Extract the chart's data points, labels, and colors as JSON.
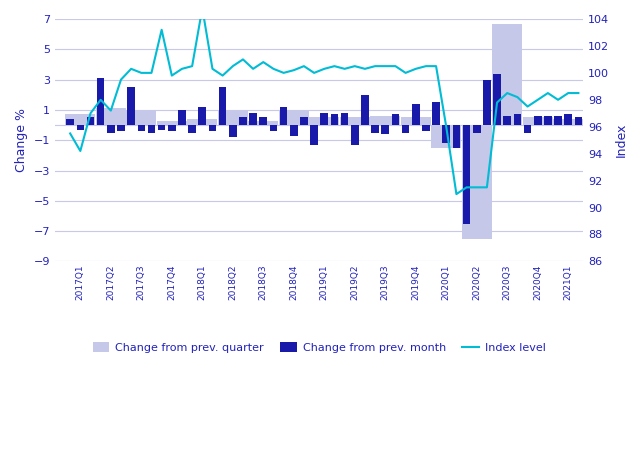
{
  "quarters": [
    "2017Q1",
    "2017Q2",
    "2017Q3",
    "2017Q4",
    "2018Q1",
    "2018Q2",
    "2018Q3",
    "2018Q4",
    "2019Q1",
    "2019Q2",
    "2019Q3",
    "2019Q4",
    "2020Q1",
    "2020Q2",
    "2020Q3",
    "2020Q4",
    "2021Q1"
  ],
  "quarter_change": [
    0.7,
    1.1,
    1.0,
    0.3,
    0.4,
    0.9,
    0.3,
    1.0,
    0.5,
    0.5,
    0.6,
    0.5,
    -1.5,
    -7.5,
    6.7,
    0.5,
    0.4
  ],
  "month_change": [
    0.4,
    -0.3,
    0.5,
    3.1,
    -0.5,
    -0.4,
    2.5,
    -0.4,
    -0.5,
    -0.3,
    -0.4,
    1.0,
    -0.5,
    1.2,
    -0.4,
    2.5,
    -0.8,
    0.5,
    0.8,
    0.5,
    -0.4,
    1.2,
    -0.7,
    0.5,
    -1.3,
    0.8,
    0.7,
    0.8,
    -1.3,
    2.0,
    -0.5,
    -0.6,
    0.7,
    -0.5,
    1.4,
    -0.4,
    1.5,
    -1.2,
    -1.5,
    -6.5,
    -0.5,
    3.0,
    3.4,
    0.6,
    0.7,
    -0.5,
    0.6,
    0.6,
    0.6,
    0.7,
    0.5
  ],
  "index_values": [
    95.5,
    94.2,
    97.0,
    98.0,
    97.2,
    99.5,
    100.3,
    100.0,
    100.0,
    103.2,
    99.8,
    100.3,
    100.5,
    104.8,
    100.3,
    99.8,
    100.5,
    101.0,
    100.3,
    100.8,
    100.3,
    100.0,
    100.2,
    100.5,
    100.0,
    100.3,
    100.5,
    100.3,
    100.5,
    100.3,
    100.5,
    100.5,
    100.5,
    100.0,
    100.3,
    100.5,
    100.5,
    96.0,
    91.0,
    91.5,
    91.5,
    91.5,
    97.8,
    98.5,
    98.2,
    97.5,
    98.0,
    98.5,
    98.0,
    98.5,
    98.5
  ],
  "bar_color_quarter": "#c5c8e8",
  "bar_color_month": "#1a1aaa",
  "line_color": "#00bcd4",
  "bg_color": "#ffffff",
  "grid_color": "#c8c8e8",
  "text_color": "#2222bb",
  "ylabel_left": "Change %",
  "ylabel_right": "Index",
  "ylim_left": [
    -9,
    7
  ],
  "ylim_right": [
    86,
    104
  ],
  "yticks_left": [
    -9,
    -7,
    -5,
    -3,
    -1,
    1,
    3,
    5,
    7
  ],
  "yticks_right": [
    86,
    88,
    90,
    92,
    94,
    96,
    98,
    100,
    102,
    104
  ],
  "legend_labels": [
    "Change from prev. quarter",
    "Change from prev. month",
    "Index level"
  ]
}
